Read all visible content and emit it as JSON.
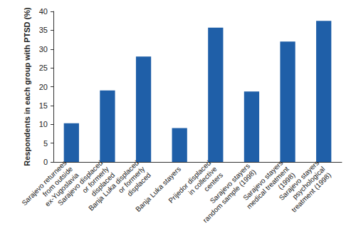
{
  "chart_data": {
    "type": "bar",
    "ylabel": "Respondents in each group with PTSD (%)",
    "categories": [
      "Sarajevo returnees from outside ex-Yugoslavia",
      "Sarajevo displaced or formerly displaced",
      "Banja Luka displaced or formerly displaced",
      "Banja Luka stayers",
      "Prijedor displaced in collective centers",
      "Sarajevo stayers random sample (1998)",
      "Sarajevo stayers medical treatment (1998)",
      "Sarajevo stayers psychological treatment (1998)"
    ],
    "values": [
      10.3,
      19,
      28,
      9,
      35.7,
      18.7,
      32,
      37.5
    ],
    "color": "#1f5fa8",
    "ylim": [
      0,
      40
    ],
    "yticks": [
      0,
      5,
      10,
      15,
      20,
      25,
      30,
      35,
      40
    ],
    "grid": false
  }
}
